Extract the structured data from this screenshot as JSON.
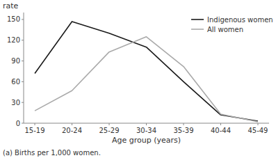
{
  "chart_data": {
    "type": "line",
    "xlabel": "Age group (years)",
    "ylabel": "rate",
    "categories": [
      "15-19",
      "20-24",
      "25-29",
      "30-34",
      "35-39",
      "40-44",
      "45-49"
    ],
    "series": [
      {
        "name": "Indigenous women",
        "color": "#1a1a1a",
        "values": [
          72,
          147,
          130,
          110,
          60,
          12,
          3
        ]
      },
      {
        "name": "All women",
        "color": "#aaaaaa",
        "values": [
          18,
          47,
          103,
          125,
          82,
          13,
          2
        ]
      }
    ],
    "ylim": [
      0,
      160
    ],
    "yticks": [
      0,
      30,
      60,
      90,
      120,
      150
    ],
    "grid": false,
    "legend": "upper right",
    "annotations": [
      "(a) Births per 1,000 women."
    ]
  }
}
